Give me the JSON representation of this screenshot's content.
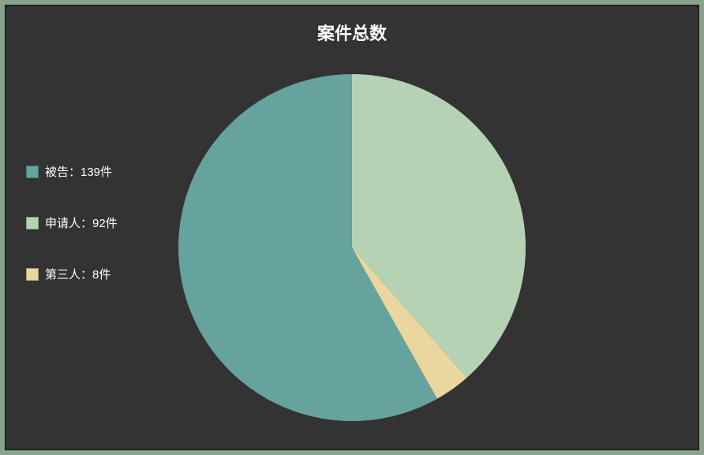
{
  "chart": {
    "type": "pie",
    "title": "案件总数",
    "title_fontsize": 22,
    "title_color": "#ffffff",
    "background_color": "#333333",
    "outer_background_color": "#87a28d",
    "border_color": "#0a0a0a",
    "radius": 220,
    "start_angle_deg": -90,
    "slices": [
      {
        "label": "被告：139件",
        "value": 139,
        "color": "#66a29e"
      },
      {
        "label": "申请人：92件",
        "value": 92,
        "color": "#b6d2b4"
      },
      {
        "label": "第三人：8件",
        "value": 8,
        "color": "#e9d79f"
      }
    ],
    "slice_order": [
      "申请人：92件",
      "第三人：8件",
      "被告：139件"
    ],
    "legend": {
      "text_color": "#ffffff",
      "fontsize": 15,
      "swatch_size": 16,
      "item_gap": 44
    }
  }
}
